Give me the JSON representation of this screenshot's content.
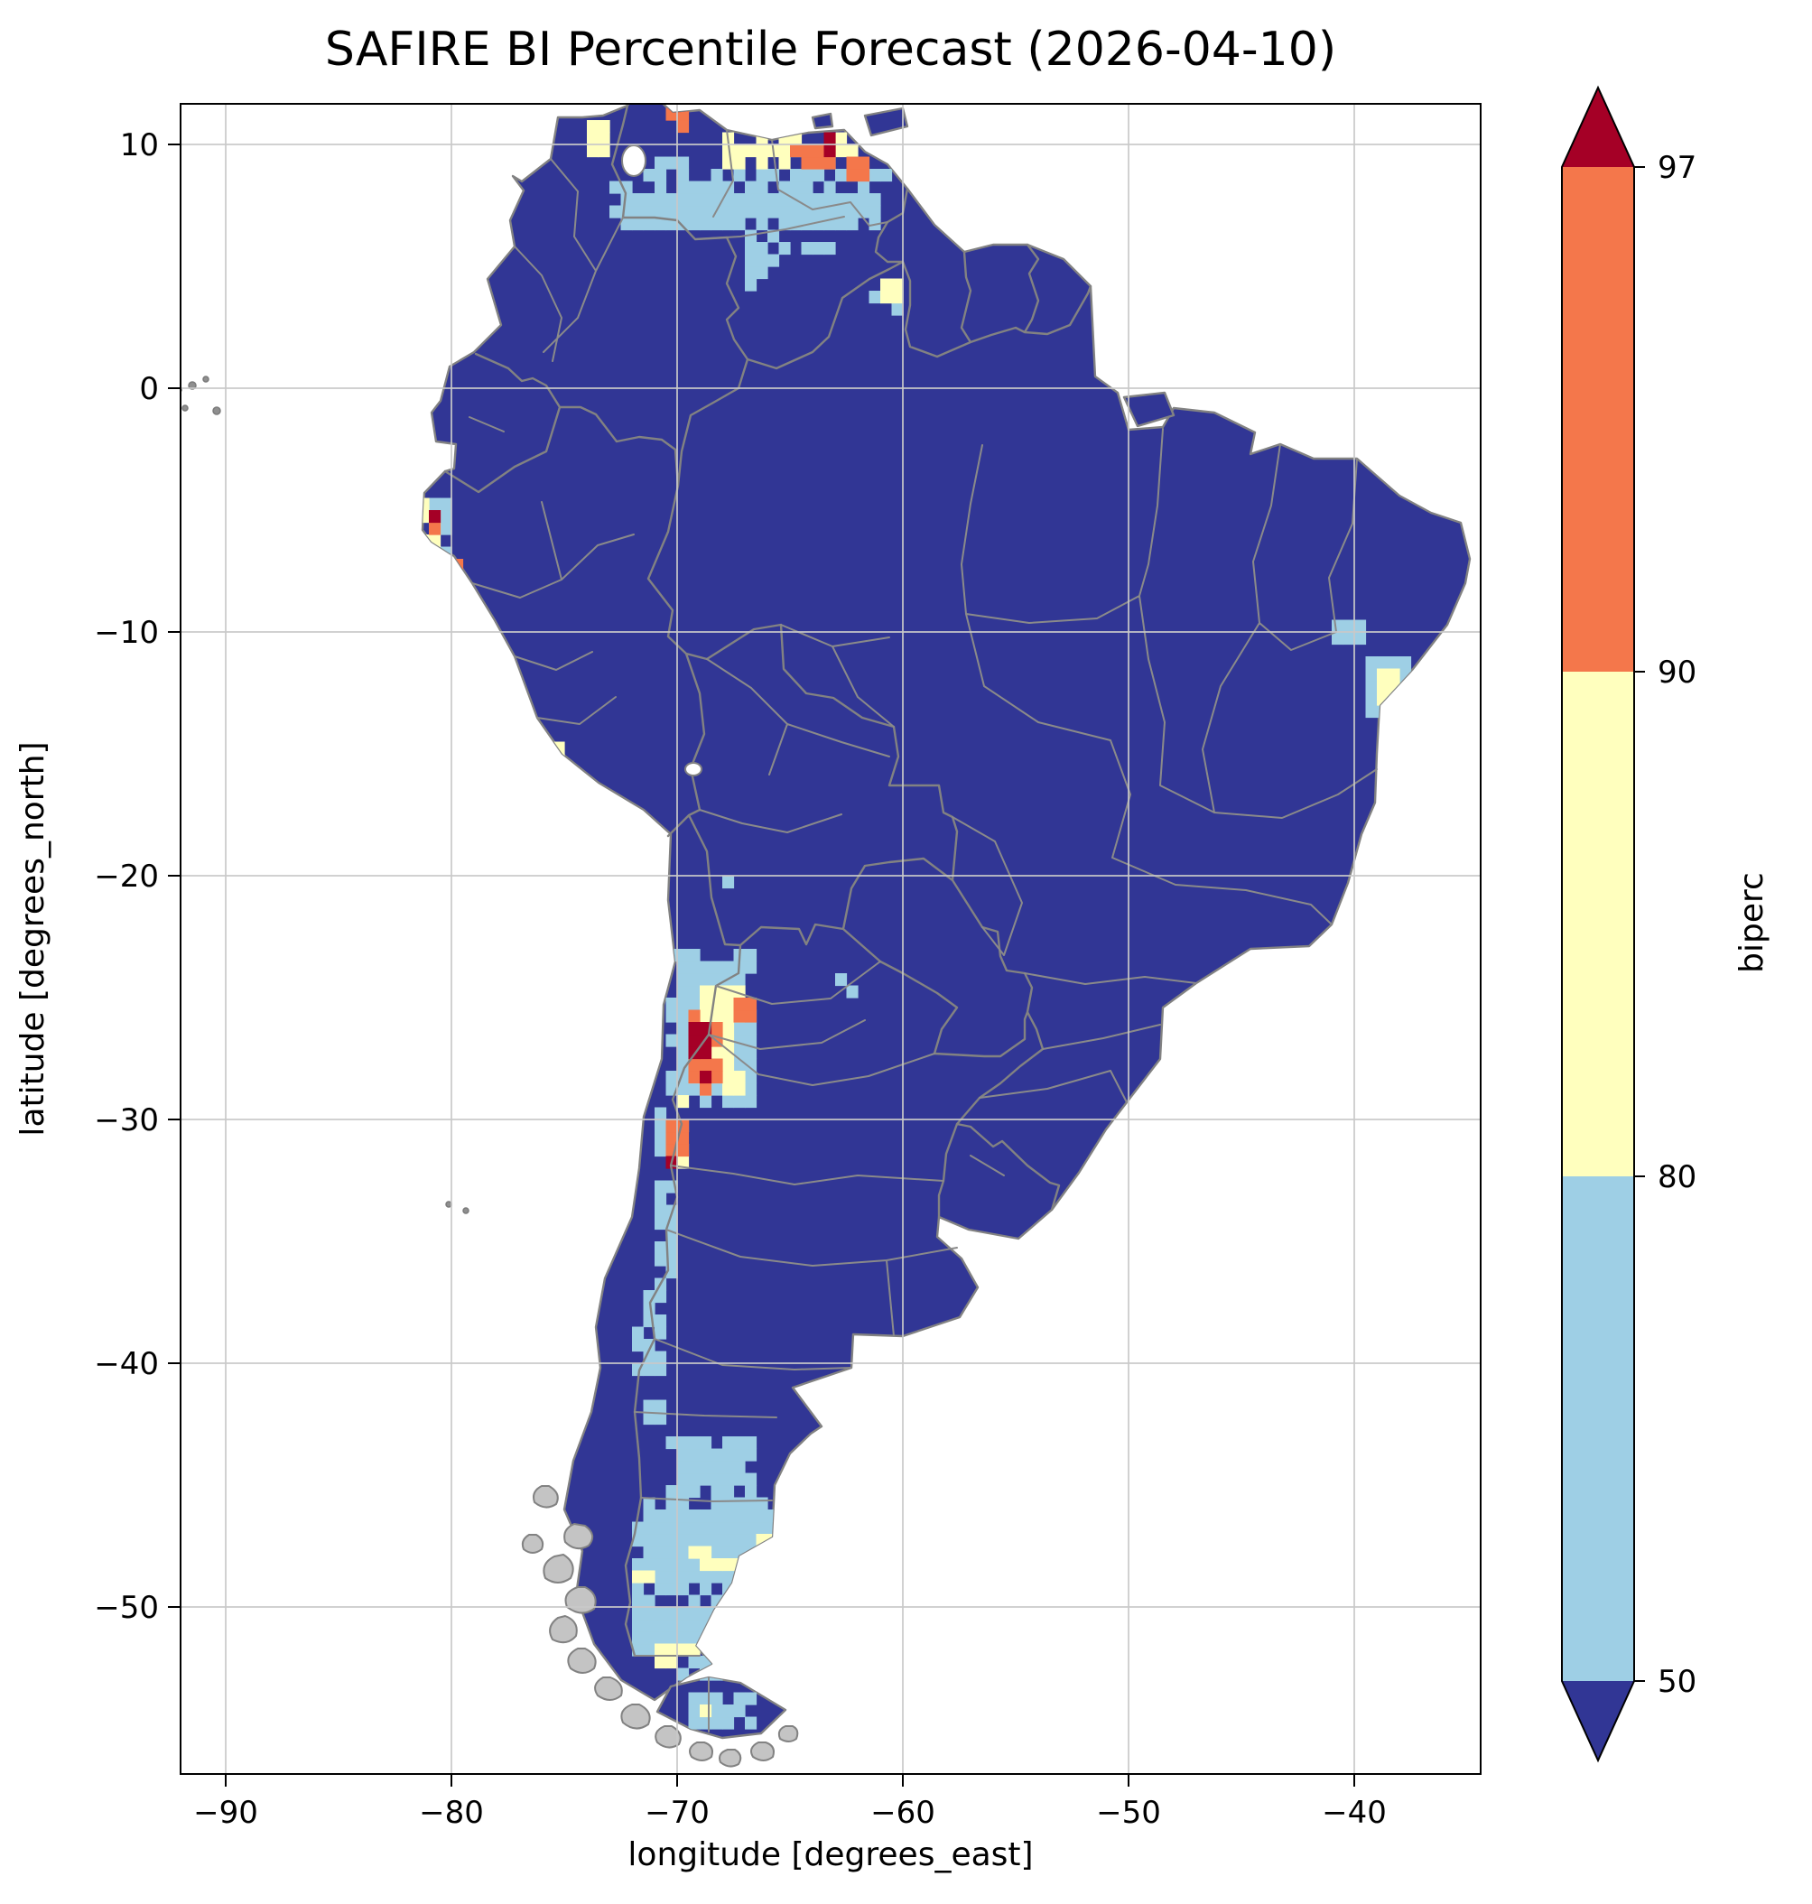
{
  "title": "SAFIRE BI Percentile Forecast (2026-04-10)",
  "axes": {
    "x_label": "longitude [degrees_east]",
    "y_label": "latitude [degrees_north]"
  },
  "colorbar": {
    "label": "biperc",
    "tick_labels": [
      "97",
      "90",
      "80",
      "50"
    ]
  },
  "chart_data": {
    "type": "heatmap",
    "title": "SAFIRE BI Percentile Forecast (2026-04-10)",
    "xlabel": "longitude [degrees_east]",
    "ylabel": "latitude [degrees_north]",
    "variable": "biperc",
    "xlim": [
      -92.0,
      -34.4
    ],
    "ylim": [
      -56.9,
      11.67
    ],
    "grid": true,
    "x_ticks": [
      -90,
      -80,
      -70,
      -60,
      -50,
      -40
    ],
    "x_tick_labels": [
      "−90",
      "−80",
      "−70",
      "−60",
      "−50",
      "−40"
    ],
    "y_ticks": [
      10,
      0,
      -10,
      -20,
      -30,
      -40,
      -50
    ],
    "y_tick_labels": [
      "10",
      "0",
      "−10",
      "−20",
      "−30",
      "−40",
      "−50"
    ],
    "colorbar_boundaries": [
      50,
      80,
      90,
      97
    ],
    "palette": {
      "<50": "#313695",
      "50-80": "#9ecfe5",
      "80-90": "#ffffbe",
      "90-97": "#f4774b",
      ">97": "#a50026"
    },
    "base_level": "land below 50th percentile (navy)",
    "hotspots": [
      {
        "lon": [
          -73.2,
          -60.8
        ],
        "lat": [
          6.7,
          8.4
        ],
        "lv": "50"
      },
      {
        "lon": [
          -71.8,
          -69.3
        ],
        "lat": [
          8.4,
          9.6
        ],
        "lv": "50"
      },
      {
        "lon": [
          -69.3,
          -60.6
        ],
        "lat": [
          8.4,
          9.1
        ],
        "lv": "50"
      },
      {
        "lon": [
          -68.2,
          -62.2
        ],
        "lat": [
          8.9,
          10.3
        ],
        "lv": "80"
      },
      {
        "lon": [
          -64.9,
          -62.9
        ],
        "lat": [
          9.1,
          10.1
        ],
        "lv": "90"
      },
      {
        "lon": [
          -63.7,
          -63.1
        ],
        "lat": [
          9.5,
          10.4
        ],
        "lv": "97"
      },
      {
        "lon": [
          -70.3,
          -69.4
        ],
        "lat": [
          10.9,
          11.7
        ],
        "lv": "97"
      },
      {
        "lon": [
          -70.8,
          -69.2
        ],
        "lat": [
          10.5,
          11.7
        ],
        "lv": "90"
      },
      {
        "lon": [
          -62.4,
          -61.3
        ],
        "lat": [
          8.7,
          9.5
        ],
        "lv": "90"
      },
      {
        "lon": [
          -66.8,
          -63.2
        ],
        "lat": [
          5.5,
          6.7
        ],
        "lv": "50"
      },
      {
        "lon": [
          -67.1,
          -65.4
        ],
        "lat": [
          3.8,
          5.3
        ],
        "lv": "50"
      },
      {
        "lon": [
          -74.1,
          -72.6
        ],
        "lat": [
          8.8,
          11.0
        ],
        "lv": "50"
      },
      {
        "lon": [
          -73.8,
          -72.9
        ],
        "lat": [
          9.7,
          10.9
        ],
        "lv": "80"
      },
      {
        "lon": [
          -61.4,
          -59.8
        ],
        "lat": [
          3.2,
          4.7
        ],
        "lv": "50"
      },
      {
        "lon": [
          -61.0,
          -60.2
        ],
        "lat": [
          3.5,
          4.4
        ],
        "lv": "80"
      },
      {
        "lon": [
          -81.5,
          -80.0
        ],
        "lat": [
          -6.8,
          -4.1
        ],
        "lv": "50"
      },
      {
        "lon": [
          -81.3,
          -80.3
        ],
        "lat": [
          -6.3,
          -4.6
        ],
        "lv": "80"
      },
      {
        "lon": [
          -81.2,
          -80.5
        ],
        "lat": [
          -5.9,
          -4.9
        ],
        "lv": "90"
      },
      {
        "lon": [
          -81.0,
          -80.6
        ],
        "lat": [
          -5.7,
          -5.1
        ],
        "lv": "97"
      },
      {
        "lon": [
          -80.1,
          -79.5
        ],
        "lat": [
          -7.4,
          -6.8
        ],
        "lv": "90"
      },
      {
        "lon": [
          -76.0,
          -75.1
        ],
        "lat": [
          -15.7,
          -14.6
        ],
        "lv": "80"
      },
      {
        "lon": [
          -75.8,
          -75.3
        ],
        "lat": [
          -15.5,
          -14.9
        ],
        "lv": "90"
      },
      {
        "lon": [
          -75.7,
          -75.4
        ],
        "lat": [
          -15.3,
          -15.0
        ],
        "lv": "97"
      },
      {
        "lon": [
          -39.7,
          -37.4
        ],
        "lat": [
          -13.7,
          -10.9
        ],
        "lv": "50"
      },
      {
        "lon": [
          -39.0,
          -38.0
        ],
        "lat": [
          -12.9,
          -11.7
        ],
        "lv": "80"
      },
      {
        "lon": [
          -40.9,
          -39.7
        ],
        "lat": [
          -10.4,
          -9.3
        ],
        "lv": "50"
      },
      {
        "lon": [
          -68.0,
          -67.4
        ],
        "lat": [
          -20.7,
          -20.1
        ],
        "lv": "50"
      },
      {
        "lon": [
          -70.7,
          -66.5
        ],
        "lat": [
          -29.3,
          -23.1
        ],
        "lv": "50"
      },
      {
        "lon": [
          -70.9,
          -69.8
        ],
        "lat": [
          -33.9,
          -29.3
        ],
        "lv": "50"
      },
      {
        "lon": [
          -69.7,
          -67.2
        ],
        "lat": [
          -28.8,
          -24.3
        ],
        "lv": "80"
      },
      {
        "lon": [
          -70.4,
          -69.4
        ],
        "lat": [
          -31.9,
          -28.9
        ],
        "lv": "80"
      },
      {
        "lon": [
          -69.5,
          -68.2
        ],
        "lat": [
          -29.0,
          -25.7
        ],
        "lv": "90"
      },
      {
        "lon": [
          -70.3,
          -69.6
        ],
        "lat": [
          -31.5,
          -29.9
        ],
        "lv": "90"
      },
      {
        "lon": [
          -69.3,
          -68.6
        ],
        "lat": [
          -27.7,
          -26.2
        ],
        "lv": "97"
      },
      {
        "lon": [
          -69.1,
          -68.6
        ],
        "lat": [
          -28.6,
          -28.1
        ],
        "lv": "97"
      },
      {
        "lon": [
          -70.7,
          -70.2
        ],
        "lat": [
          -32.2,
          -31.7
        ],
        "lv": "97"
      },
      {
        "lon": [
          -67.3,
          -66.5
        ],
        "lat": [
          -25.9,
          -25.1
        ],
        "lv": "90"
      },
      {
        "lon": [
          -62.9,
          -62.4
        ],
        "lat": [
          -24.5,
          -24.0
        ],
        "lv": "50"
      },
      {
        "lon": [
          -62.3,
          -61.8
        ],
        "lat": [
          -25.2,
          -24.7
        ],
        "lv": "50"
      },
      {
        "lon": [
          -71.0,
          -70.1
        ],
        "lat": [
          -36.3,
          -34.2
        ],
        "lv": "50"
      },
      {
        "lon": [
          -71.6,
          -70.5
        ],
        "lat": [
          -38.6,
          -36.3
        ],
        "lv": "50"
      },
      {
        "lon": [
          -71.9,
          -70.7
        ],
        "lat": [
          -40.4,
          -38.6
        ],
        "lv": "50"
      },
      {
        "lon": [
          -71.3,
          -70.4
        ],
        "lat": [
          -42.5,
          -41.3
        ],
        "lv": "50"
      },
      {
        "lon": [
          -70.7,
          -66.4
        ],
        "lat": [
          -45.6,
          -43.0
        ],
        "lv": "50"
      },
      {
        "lon": [
          -71.9,
          -65.5
        ],
        "lat": [
          -49.4,
          -45.6
        ],
        "lv": "50"
      },
      {
        "lon": [
          -72.1,
          -67.9
        ],
        "lat": [
          -51.9,
          -49.4
        ],
        "lv": "50"
      },
      {
        "lon": [
          -70.1,
          -67.9
        ],
        "lat": [
          -53.1,
          -51.9
        ],
        "lv": "50"
      },
      {
        "lon": [
          -69.6,
          -66.7
        ],
        "lat": [
          -54.9,
          -53.3
        ],
        "lv": "50"
      },
      {
        "lon": [
          -69.4,
          -68.2
        ],
        "lat": [
          -48.3,
          -47.2
        ],
        "lv": "80"
      },
      {
        "lon": [
          -68.0,
          -67.1
        ],
        "lat": [
          -48.6,
          -47.8
        ],
        "lv": "80"
      },
      {
        "lon": [
          -66.4,
          -65.6
        ],
        "lat": [
          -47.9,
          -47.1
        ],
        "lv": "80"
      },
      {
        "lon": [
          -72.0,
          -70.9
        ],
        "lat": [
          -49.2,
          -48.4
        ],
        "lv": "80"
      },
      {
        "lon": [
          -71.1,
          -70.0
        ],
        "lat": [
          -52.3,
          -51.5
        ],
        "lv": "80"
      },
      {
        "lon": [
          -69.9,
          -69.1
        ],
        "lat": [
          -52.1,
          -51.6
        ],
        "lv": "80"
      },
      {
        "lon": [
          -68.9,
          -68.3
        ],
        "lat": [
          -54.3,
          -53.8
        ],
        "lv": "80"
      }
    ]
  }
}
